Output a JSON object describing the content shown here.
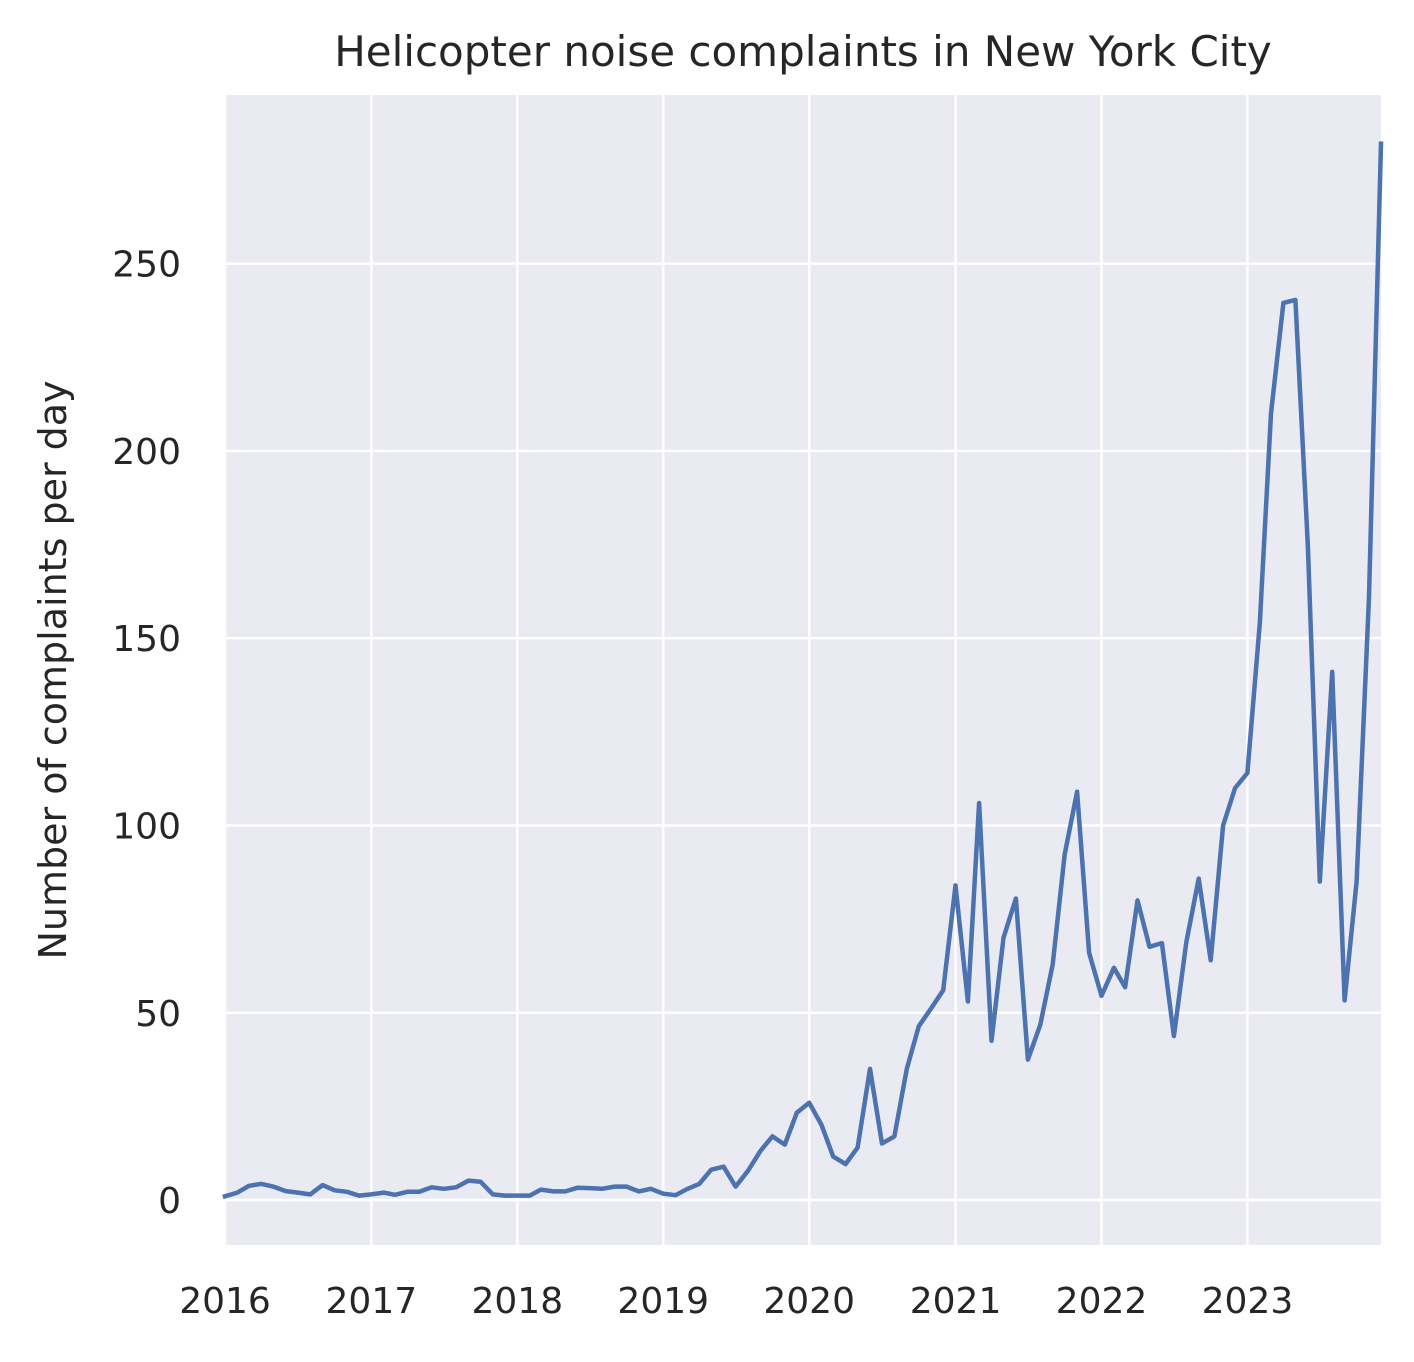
{
  "chart_data": {
    "type": "line",
    "title": "Helicopter noise complaints in New York City",
    "xlabel": "",
    "ylabel": "Number of complaints per day",
    "x_ticks": [
      "2016",
      "2017",
      "2018",
      "2019",
      "2020",
      "2021",
      "2022",
      "2023"
    ],
    "y_ticks": [
      0,
      50,
      100,
      150,
      200,
      250
    ],
    "xlim": [
      "2016-01-01",
      "2023-12-01"
    ],
    "ylim": [
      -12,
      295
    ],
    "grid": true,
    "background": "#EAEAF2",
    "grid_color": "#FFFFFF",
    "series": [
      {
        "color": "#4C72B0",
        "points": [
          [
            "2016-01-01",
            1.0
          ],
          [
            "2016-02-01",
            2.0
          ],
          [
            "2016-03-01",
            3.8
          ],
          [
            "2016-04-01",
            4.3
          ],
          [
            "2016-05-01",
            3.6
          ],
          [
            "2016-06-01",
            2.4
          ],
          [
            "2016-07-01",
            2.0
          ],
          [
            "2016-08-01",
            1.5
          ],
          [
            "2016-09-01",
            4.0
          ],
          [
            "2016-10-01",
            2.6
          ],
          [
            "2016-11-01",
            2.2
          ],
          [
            "2016-12-01",
            1.2
          ],
          [
            "2017-01-01",
            1.5
          ],
          [
            "2017-02-01",
            2.0
          ],
          [
            "2017-03-01",
            1.4
          ],
          [
            "2017-04-01",
            2.2
          ],
          [
            "2017-05-01",
            2.2
          ],
          [
            "2017-06-01",
            3.4
          ],
          [
            "2017-07-01",
            3.0
          ],
          [
            "2017-08-01",
            3.4
          ],
          [
            "2017-09-01",
            5.2
          ],
          [
            "2017-10-01",
            4.9
          ],
          [
            "2017-11-01",
            1.5
          ],
          [
            "2017-12-01",
            1.2
          ],
          [
            "2018-01-01",
            1.2
          ],
          [
            "2018-02-01",
            1.2
          ],
          [
            "2018-03-01",
            2.8
          ],
          [
            "2018-04-01",
            2.3
          ],
          [
            "2018-05-01",
            2.3
          ],
          [
            "2018-06-01",
            3.3
          ],
          [
            "2018-07-01",
            3.2
          ],
          [
            "2018-08-01",
            3.0
          ],
          [
            "2018-09-01",
            3.6
          ],
          [
            "2018-10-01",
            3.6
          ],
          [
            "2018-11-01",
            2.3
          ],
          [
            "2018-12-01",
            3.0
          ],
          [
            "2019-01-01",
            1.7
          ],
          [
            "2019-02-01",
            1.3
          ],
          [
            "2019-03-01",
            2.9
          ],
          [
            "2019-04-01",
            4.3
          ],
          [
            "2019-05-01",
            8.1
          ],
          [
            "2019-06-01",
            8.9
          ],
          [
            "2019-07-01",
            3.6
          ],
          [
            "2019-08-01",
            7.8
          ],
          [
            "2019-09-01",
            13.1
          ],
          [
            "2019-10-01",
            17.0
          ],
          [
            "2019-11-01",
            14.8
          ],
          [
            "2019-12-01",
            23.3
          ],
          [
            "2020-01-01",
            26.0
          ],
          [
            "2020-02-01",
            20.0
          ],
          [
            "2020-03-01",
            11.6
          ],
          [
            "2020-04-01",
            9.6
          ],
          [
            "2020-05-01",
            14.0
          ],
          [
            "2020-06-01",
            35.0
          ],
          [
            "2020-07-01",
            15.1
          ],
          [
            "2020-08-01",
            17.0
          ],
          [
            "2020-09-01",
            35.0
          ],
          [
            "2020-10-01",
            46.4
          ],
          [
            "2020-11-01",
            51.2
          ],
          [
            "2020-12-01",
            56.0
          ],
          [
            "2021-01-01",
            84.0
          ],
          [
            "2021-02-01",
            53.0
          ],
          [
            "2021-03-01",
            106.0
          ],
          [
            "2021-04-01",
            42.5
          ],
          [
            "2021-05-01",
            70.0
          ],
          [
            "2021-06-01",
            80.5
          ],
          [
            "2021-07-01",
            37.5
          ],
          [
            "2021-08-01",
            46.8
          ],
          [
            "2021-09-01",
            62.9
          ],
          [
            "2021-10-01",
            92.3
          ],
          [
            "2021-11-01",
            109.0
          ],
          [
            "2021-12-01",
            66.0
          ],
          [
            "2022-01-01",
            54.5
          ],
          [
            "2022-02-01",
            62.0
          ],
          [
            "2022-03-01",
            56.8
          ],
          [
            "2022-04-01",
            80.0
          ],
          [
            "2022-05-01",
            67.6
          ],
          [
            "2022-06-01",
            68.6
          ],
          [
            "2022-07-01",
            43.8
          ],
          [
            "2022-08-01",
            68.8
          ],
          [
            "2022-09-01",
            85.8
          ],
          [
            "2022-10-01",
            64.0
          ],
          [
            "2022-11-01",
            100.0
          ],
          [
            "2022-12-01",
            110.0
          ],
          [
            "2023-01-01",
            114.0
          ],
          [
            "2023-02-01",
            154.0
          ],
          [
            "2023-03-01",
            210.0
          ],
          [
            "2023-04-01",
            239.5
          ],
          [
            "2023-05-01",
            240.3
          ],
          [
            "2023-06-01",
            175.0
          ],
          [
            "2023-07-01",
            85.0
          ],
          [
            "2023-08-01",
            141.0
          ],
          [
            "2023-09-01",
            53.3
          ],
          [
            "2023-10-01",
            85.0
          ],
          [
            "2023-11-01",
            161.0
          ],
          [
            "2023-12-01",
            282.0
          ]
        ]
      }
    ]
  }
}
